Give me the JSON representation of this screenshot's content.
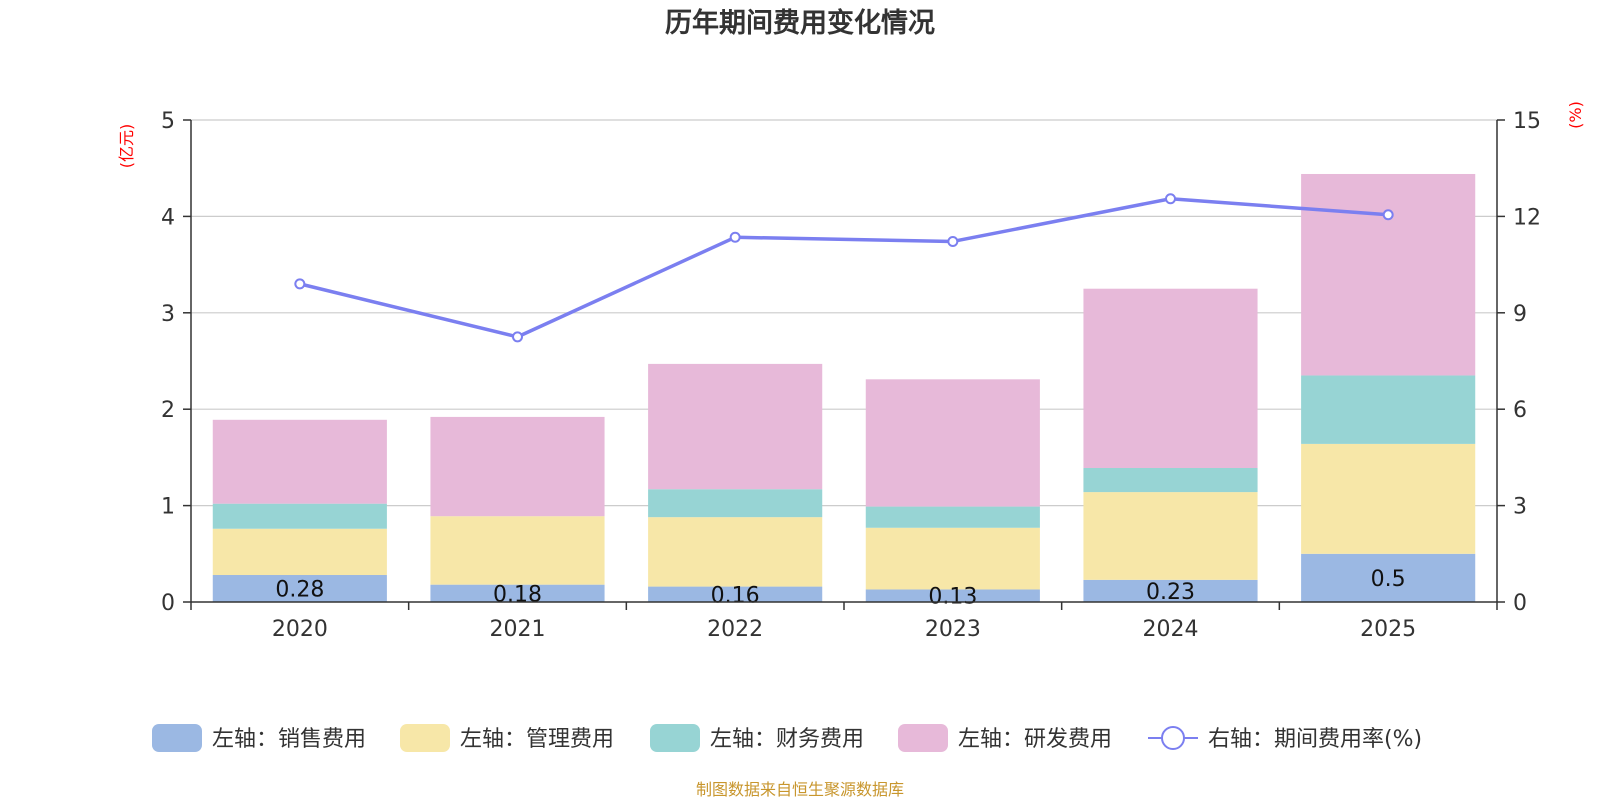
{
  "chart_data": {
    "type": "bar",
    "title": "历年期间费用变化情况",
    "categories": [
      "2020",
      "2021",
      "2022",
      "2023",
      "2024",
      "2025"
    ],
    "left_axis": {
      "unit": "(亿元)",
      "ylim": [
        0,
        5
      ],
      "ticks": [
        "0",
        "1",
        "2",
        "3",
        "4",
        "5"
      ]
    },
    "right_axis": {
      "unit": "(%)",
      "ylim": [
        0,
        15
      ],
      "ticks": [
        "0",
        "3",
        "6",
        "9",
        "12",
        "15"
      ]
    },
    "stacked": true,
    "series": [
      {
        "name": "左轴：销售费用",
        "type": "bar",
        "axis": "left",
        "color": "#9bb8e3",
        "values": [
          0.28,
          0.18,
          0.16,
          0.13,
          0.23,
          0.5
        ],
        "labels": [
          "0.28",
          "0.18",
          "0.16",
          "0.13",
          "0.23",
          "0.5"
        ]
      },
      {
        "name": "左轴：管理费用",
        "type": "bar",
        "axis": "left",
        "color": "#f7e7a8",
        "values": [
          0.48,
          0.71,
          0.72,
          0.64,
          0.91,
          1.14
        ]
      },
      {
        "name": "左轴：财务费用",
        "type": "bar",
        "axis": "left",
        "color": "#97d4d4",
        "values": [
          0.26,
          0.0,
          0.29,
          0.22,
          0.25,
          0.71
        ]
      },
      {
        "name": "左轴：研发费用",
        "type": "bar",
        "axis": "left",
        "color": "#e7b9d9",
        "values": [
          0.87,
          1.03,
          1.3,
          1.32,
          1.86,
          2.09
        ]
      },
      {
        "name": "右轴：期间费用率(%)",
        "type": "line",
        "axis": "right",
        "color": "#7b7ff0",
        "values": [
          9.9,
          8.25,
          11.35,
          11.22,
          12.55,
          12.05
        ]
      }
    ],
    "grid": true,
    "legend_position": "bottom"
  },
  "source": "制图数据来自恒生聚源数据库"
}
